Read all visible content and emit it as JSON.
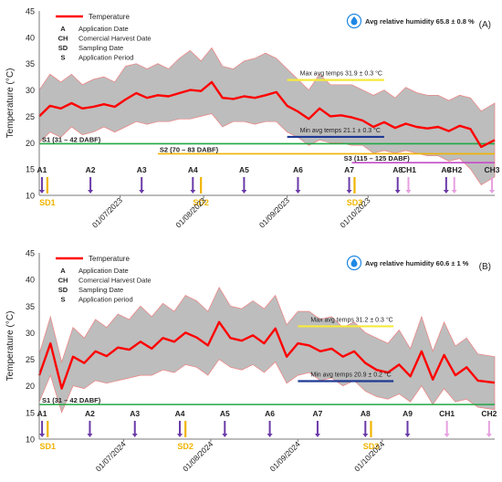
{
  "chart_data": [
    {
      "type": "area",
      "panel_label": "(A)",
      "ylabel": "Temperature (°C)",
      "ylim": [
        10,
        45
      ],
      "yticks": [
        10,
        15,
        20,
        25,
        30,
        35,
        40,
        45
      ],
      "xlim": [
        "2023-06-01",
        "2023-11-17"
      ],
      "xticks": [
        "01/07/2023",
        "01/08/2023",
        "01/09/2023",
        "01/10/2023"
      ],
      "xtick_dates": [
        "2023-07-01",
        "2023-08-01",
        "2023-09-01",
        "2023-10-01"
      ],
      "legend": {
        "series_label": "Temperature",
        "abbrev": [
          {
            "key": "A",
            "text": "Application Date"
          },
          {
            "key": "CH",
            "text": "Comercial Harvest Date"
          },
          {
            "key": "SD",
            "text": "Sampling Date"
          },
          {
            "key": "S",
            "text": "Application Period"
          }
        ]
      },
      "humidity": {
        "label": "Avg relative humidity",
        "value": "65.8 ± 0.8 %"
      },
      "series": [
        {
          "name": "Temperature",
          "color": "#ff0000",
          "x": [
            "2023-06-01",
            "2023-06-05",
            "2023-06-09",
            "2023-06-13",
            "2023-06-17",
            "2023-06-21",
            "2023-06-25",
            "2023-06-29",
            "2023-07-03",
            "2023-07-07",
            "2023-07-11",
            "2023-07-15",
            "2023-07-19",
            "2023-07-23",
            "2023-07-27",
            "2023-07-31",
            "2023-08-04",
            "2023-08-08",
            "2023-08-12",
            "2023-08-16",
            "2023-08-20",
            "2023-08-24",
            "2023-08-28",
            "2023-09-01",
            "2023-09-05",
            "2023-09-09",
            "2023-09-13",
            "2023-09-17",
            "2023-09-21",
            "2023-09-25",
            "2023-09-29",
            "2023-10-03",
            "2023-10-07",
            "2023-10-11",
            "2023-10-15",
            "2023-10-19",
            "2023-10-23",
            "2023-10-27",
            "2023-10-31",
            "2023-11-04",
            "2023-11-08",
            "2023-11-12",
            "2023-11-17"
          ],
          "mean": [
            25.0,
            27.0,
            26.5,
            27.5,
            26.5,
            26.8,
            27.3,
            26.8,
            28.2,
            29.4,
            28.5,
            29.0,
            28.8,
            29.4,
            30.0,
            29.8,
            31.5,
            28.5,
            28.3,
            28.8,
            28.5,
            29.0,
            29.6,
            27.0,
            25.9,
            24.5,
            26.5,
            25.0,
            25.2,
            24.8,
            24.2,
            23.0,
            23.9,
            22.8,
            23.6,
            23.0,
            22.7,
            23.0,
            22.2,
            23.2,
            22.6,
            19.2,
            20.5
          ],
          "min": [
            20.0,
            22.0,
            21.0,
            23.0,
            21.5,
            22.0,
            23.0,
            22.0,
            23.0,
            24.0,
            23.5,
            24.0,
            24.0,
            24.5,
            24.5,
            25.0,
            25.5,
            23.0,
            24.0,
            24.0,
            23.5,
            24.0,
            24.0,
            22.0,
            21.0,
            19.5,
            20.5,
            20.0,
            20.0,
            19.5,
            19.5,
            18.0,
            18.5,
            18.0,
            18.5,
            18.0,
            17.5,
            17.5,
            16.5,
            17.0,
            15.0,
            12.0,
            13.5
          ],
          "max": [
            30.0,
            33.0,
            31.5,
            33.0,
            31.0,
            32.0,
            32.5,
            31.5,
            34.5,
            35.0,
            34.0,
            35.0,
            34.0,
            36.0,
            37.5,
            35.5,
            38.0,
            34.5,
            34.0,
            35.5,
            36.0,
            37.0,
            36.0,
            34.0,
            32.0,
            30.0,
            33.0,
            31.0,
            31.0,
            31.0,
            30.0,
            29.0,
            30.0,
            28.5,
            30.5,
            29.5,
            29.0,
            29.0,
            28.0,
            29.0,
            28.5,
            26.0,
            27.5
          ]
        }
      ],
      "ref_lines": [
        {
          "label": "Max avg temps 31.9 ± 0.3 °C",
          "y": 31.9,
          "color": "#f5ea3c",
          "from": "2023-09-01",
          "to": "2023-10-07"
        },
        {
          "label": "Min avg temps 21.1 ± 0.3 °C",
          "y": 21.1,
          "color": "#1f3a93",
          "from": "2023-09-01",
          "to": "2023-10-07"
        }
      ],
      "periods": [
        {
          "label": "S1 (31 – 42 DABF)",
          "y": 19.8,
          "color": "#22a845",
          "from": "2023-06-01",
          "to": "2023-11-17"
        },
        {
          "label": "S2 (70 – 83 DABF)",
          "y": 17.9,
          "color": "#f0b400",
          "from": "2023-07-15",
          "to": "2023-11-17"
        },
        {
          "label": "S3 (115 – 125 DABF)",
          "y": 16.2,
          "color": "#c64cc9",
          "from": "2023-09-25",
          "to": "2023-11-17"
        }
      ],
      "events": [
        {
          "label": "A1",
          "type": "A",
          "date": "2023-06-02"
        },
        {
          "label": "SD1",
          "type": "SD",
          "date": "2023-06-04"
        },
        {
          "label": "A2",
          "type": "A",
          "date": "2023-06-20"
        },
        {
          "label": "A3",
          "type": "A",
          "date": "2023-07-09"
        },
        {
          "label": "A4",
          "type": "A",
          "date": "2023-07-28"
        },
        {
          "label": "SD2",
          "type": "SD",
          "date": "2023-07-31"
        },
        {
          "label": "A5",
          "type": "A",
          "date": "2023-08-16"
        },
        {
          "label": "A6",
          "type": "A",
          "date": "2023-09-05"
        },
        {
          "label": "A7",
          "type": "A",
          "date": "2023-09-24"
        },
        {
          "label": "SD3",
          "type": "SD",
          "date": "2023-09-26"
        },
        {
          "label": "A8",
          "type": "A",
          "date": "2023-10-12"
        },
        {
          "label": "CH1",
          "type": "CH",
          "date": "2023-10-16"
        },
        {
          "label": "A9",
          "type": "A",
          "date": "2023-10-30"
        },
        {
          "label": "CH2",
          "type": "CH",
          "date": "2023-11-02"
        },
        {
          "label": "CH3",
          "type": "CH",
          "date": "2023-11-16"
        }
      ]
    },
    {
      "type": "area",
      "panel_label": "(B)",
      "ylabel": "Temperature (°C)",
      "ylim": [
        10,
        45
      ],
      "yticks": [
        10,
        15,
        20,
        25,
        30,
        35,
        40,
        45
      ],
      "xlim": [
        "2024-06-01",
        "2024-11-10"
      ],
      "xticks": [
        "01/07/2024",
        "01/08/2024",
        "01/09/2024",
        "01/10/2024"
      ],
      "xtick_dates": [
        "2024-07-01",
        "2024-08-01",
        "2024-09-01",
        "2024-10-01"
      ],
      "legend": {
        "series_label": "Temperature",
        "abbrev": [
          {
            "key": "A",
            "text": "Application Date"
          },
          {
            "key": "CH",
            "text": "Comercial Harvest Date"
          },
          {
            "key": "SD",
            "text": "Sampling Date"
          },
          {
            "key": "S",
            "text": "Application period"
          }
        ]
      },
      "humidity": {
        "label": "Avg relative humidity",
        "value": "60.6 ± 1 %"
      },
      "series": [
        {
          "name": "Temperature",
          "color": "#ff0000",
          "x": [
            "2024-06-01",
            "2024-06-05",
            "2024-06-09",
            "2024-06-13",
            "2024-06-17",
            "2024-06-21",
            "2024-06-25",
            "2024-06-29",
            "2024-07-03",
            "2024-07-07",
            "2024-07-11",
            "2024-07-15",
            "2024-07-19",
            "2024-07-23",
            "2024-07-27",
            "2024-07-31",
            "2024-08-04",
            "2024-08-08",
            "2024-08-12",
            "2024-08-16",
            "2024-08-20",
            "2024-08-24",
            "2024-08-28",
            "2024-09-01",
            "2024-09-05",
            "2024-09-09",
            "2024-09-13",
            "2024-09-17",
            "2024-09-21",
            "2024-09-25",
            "2024-09-29",
            "2024-10-03",
            "2024-10-07",
            "2024-10-11",
            "2024-10-15",
            "2024-10-19",
            "2024-10-23",
            "2024-10-27",
            "2024-10-31",
            "2024-11-04",
            "2024-11-10"
          ],
          "mean": [
            22.0,
            28.0,
            19.5,
            25.5,
            24.3,
            26.5,
            25.6,
            27.2,
            26.8,
            28.3,
            27.0,
            29.0,
            28.3,
            30.0,
            29.1,
            27.6,
            32.0,
            29.0,
            28.5,
            29.5,
            28.0,
            30.8,
            25.5,
            28.0,
            27.6,
            26.5,
            27.0,
            25.5,
            26.5,
            24.3,
            23.0,
            22.5,
            24.0,
            21.8,
            26.5,
            21.2,
            25.8,
            22.0,
            23.5,
            21.0,
            20.6
          ],
          "min": [
            17.0,
            22.0,
            15.0,
            20.0,
            19.5,
            21.0,
            20.5,
            21.0,
            21.5,
            22.0,
            22.0,
            23.0,
            22.5,
            24.0,
            23.5,
            22.0,
            25.0,
            23.5,
            23.0,
            24.0,
            22.5,
            24.5,
            20.5,
            22.0,
            22.5,
            21.0,
            21.5,
            20.0,
            21.0,
            19.0,
            18.0,
            17.5,
            18.5,
            17.0,
            20.0,
            16.5,
            19.5,
            17.0,
            17.5,
            16.0,
            15.5
          ],
          "max": [
            26.0,
            33.0,
            24.5,
            31.0,
            29.0,
            32.5,
            31.0,
            33.5,
            32.5,
            35.0,
            33.0,
            35.5,
            34.0,
            37.0,
            36.0,
            34.0,
            38.5,
            35.0,
            34.5,
            36.0,
            34.5,
            37.0,
            31.5,
            34.0,
            34.0,
            32.5,
            33.0,
            31.0,
            32.0,
            30.0,
            29.0,
            28.0,
            30.5,
            27.0,
            33.0,
            26.5,
            32.0,
            27.5,
            29.0,
            26.0,
            25.5
          ]
        }
      ],
      "ref_lines": [
        {
          "label": "Max avg temps 31.2 ± 0.3 °C",
          "y": 31.2,
          "color": "#f5ea3c",
          "from": "2024-09-01",
          "to": "2024-10-05"
        },
        {
          "label": "Min avg temps 20.9 ± 0.2 °C",
          "y": 20.9,
          "color": "#1f3a93",
          "from": "2024-09-01",
          "to": "2024-10-05"
        }
      ],
      "periods": [
        {
          "label": "S1 (31 – 42 DABF)",
          "y": 16.5,
          "color": "#22a845",
          "from": "2024-06-01",
          "to": "2024-11-10"
        }
      ],
      "events": [
        {
          "label": "A1",
          "type": "A",
          "date": "2024-06-02"
        },
        {
          "label": "SD1",
          "type": "SD",
          "date": "2024-06-04"
        },
        {
          "label": "A2",
          "type": "A",
          "date": "2024-06-19"
        },
        {
          "label": "A3",
          "type": "A",
          "date": "2024-07-05"
        },
        {
          "label": "A4",
          "type": "A",
          "date": "2024-07-21"
        },
        {
          "label": "SD2",
          "type": "SD",
          "date": "2024-07-23"
        },
        {
          "label": "A5",
          "type": "A",
          "date": "2024-08-06"
        },
        {
          "label": "A6",
          "type": "A",
          "date": "2024-08-22"
        },
        {
          "label": "A7",
          "type": "A",
          "date": "2024-09-08"
        },
        {
          "label": "A8",
          "type": "A",
          "date": "2024-09-25"
        },
        {
          "label": "SD3",
          "type": "SD",
          "date": "2024-09-27"
        },
        {
          "label": "A9",
          "type": "A",
          "date": "2024-10-10"
        },
        {
          "label": "CH1",
          "type": "CH",
          "date": "2024-10-24"
        },
        {
          "label": "CH2",
          "type": "CH",
          "date": "2024-11-08"
        }
      ]
    }
  ],
  "styles": {
    "band_fill": "#bdbdbd",
    "band_edge": "#f08080",
    "axis_color": "#7a7a7a",
    "text_color": "#222222",
    "arrow_A": "#6a3aa8",
    "arrow_CH": "#e79fe0",
    "arrow_SD": "#f0b400",
    "label_SD": "#f0b400",
    "humidity_icon": "#1e88e5"
  }
}
